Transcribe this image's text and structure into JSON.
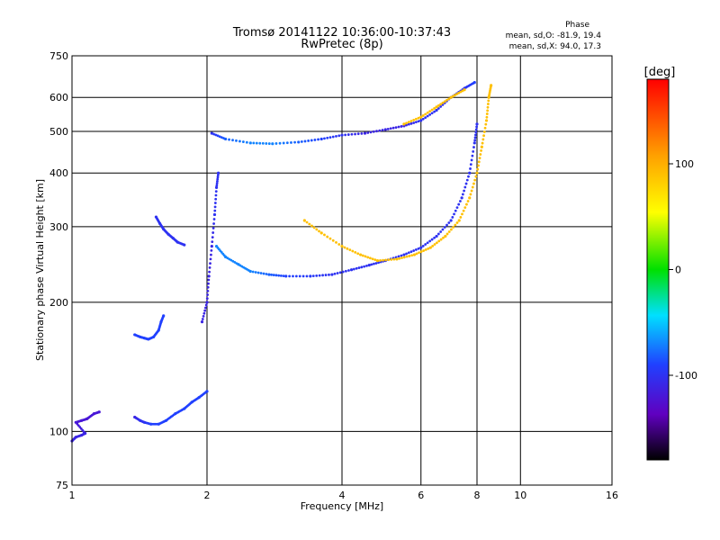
{
  "chart_data": {
    "type": "scatter",
    "title": "Tromsø 20141122 10:36:00-10:37:43",
    "subtitle": "RwPretec (8p)",
    "xlabel": "Frequency [MHz]",
    "ylabel": "Stationary phase Virtual Height [km]",
    "x_scale": "log",
    "y_scale": "log",
    "xlim": [
      1,
      16
    ],
    "ylim": [
      75,
      750
    ],
    "x_ticks": [
      1,
      2,
      4,
      6,
      8,
      10,
      16
    ],
    "y_ticks": [
      75,
      100,
      200,
      300,
      400,
      500,
      600,
      750
    ],
    "grid": true,
    "phase_stats": {
      "heading": "Phase",
      "line1": "mean, sd,O: -81.9, 19.4",
      "line2": "mean, sd,X:  94.0, 17.3"
    },
    "colorbar": {
      "label": "[deg]",
      "range": [
        -180,
        180
      ],
      "ticks": [
        100,
        0,
        -100
      ],
      "tick_labels": [
        "100",
        "0",
        "-100"
      ],
      "colormap": "rainbow"
    },
    "series": [
      {
        "points": [
          [
            1.0,
            95,
            -110
          ],
          [
            1.02,
            97,
            -110
          ],
          [
            1.05,
            98,
            -110
          ],
          [
            1.07,
            99,
            -110
          ],
          [
            1.02,
            105,
            -120
          ],
          [
            1.05,
            106,
            -120
          ],
          [
            1.08,
            107,
            -120
          ],
          [
            1.12,
            110,
            -120
          ],
          [
            1.15,
            111,
            -120
          ]
        ],
        "phase": -120
      },
      {
        "points": [
          [
            1.38,
            108,
            -110
          ],
          [
            1.42,
            106,
            -100
          ],
          [
            1.45,
            105,
            -100
          ],
          [
            1.5,
            104,
            -90
          ],
          [
            1.56,
            104,
            -90
          ],
          [
            1.62,
            106,
            -90
          ],
          [
            1.7,
            110,
            -90
          ],
          [
            1.78,
            113,
            -90
          ],
          [
            1.85,
            117,
            -90
          ],
          [
            1.92,
            120,
            -90
          ],
          [
            2.0,
            124,
            -90
          ]
        ],
        "phase": -90
      },
      {
        "points": [
          [
            1.38,
            168,
            -90
          ],
          [
            1.42,
            166,
            -90
          ],
          [
            1.45,
            165,
            -90
          ],
          [
            1.48,
            164,
            -90
          ],
          [
            1.52,
            166,
            -90
          ],
          [
            1.56,
            172,
            -90
          ],
          [
            1.58,
            180,
            -90
          ],
          [
            1.6,
            186,
            -90
          ]
        ],
        "phase": -90
      },
      {
        "points": [
          [
            1.54,
            316,
            -100
          ],
          [
            1.57,
            305,
            -100
          ],
          [
            1.6,
            296,
            -100
          ],
          [
            1.64,
            288,
            -100
          ],
          [
            1.68,
            282,
            -100
          ],
          [
            1.72,
            276,
            -100
          ],
          [
            1.78,
            272,
            -100
          ]
        ],
        "phase": -100
      },
      {
        "points": [
          [
            1.95,
            180,
            -110
          ],
          [
            2.0,
            200,
            -110
          ],
          [
            2.02,
            230,
            -110
          ],
          [
            2.05,
            270,
            -110
          ],
          [
            2.08,
            320,
            -100
          ],
          [
            2.1,
            370,
            -100
          ],
          [
            2.12,
            400,
            -100
          ]
        ],
        "phase": -110
      },
      {
        "points": [
          [
            2.1,
            270,
            -70
          ],
          [
            2.2,
            255,
            -70
          ],
          [
            2.35,
            245,
            -70
          ],
          [
            2.5,
            236,
            -70
          ],
          [
            2.75,
            232,
            -80
          ],
          [
            3.0,
            230,
            -90
          ],
          [
            3.4,
            230,
            -95
          ],
          [
            3.8,
            232,
            -100
          ],
          [
            4.2,
            238,
            -100
          ],
          [
            4.6,
            244,
            -100
          ],
          [
            5.0,
            250,
            -100
          ],
          [
            5.5,
            258,
            -100
          ],
          [
            6.0,
            268,
            -100
          ],
          [
            6.5,
            285,
            -100
          ],
          [
            7.0,
            310,
            -100
          ],
          [
            7.4,
            350,
            -100
          ],
          [
            7.7,
            400,
            -100
          ],
          [
            7.9,
            470,
            -100
          ],
          [
            8.0,
            520,
            -100
          ]
        ],
        "phase": -100
      },
      {
        "points": [
          [
            3.3,
            310,
            90
          ],
          [
            3.6,
            290,
            90
          ],
          [
            4.0,
            270,
            90
          ],
          [
            4.4,
            258,
            90
          ],
          [
            4.8,
            250,
            90
          ],
          [
            5.3,
            252,
            90
          ],
          [
            5.8,
            258,
            90
          ],
          [
            6.3,
            268,
            90
          ],
          [
            6.8,
            285,
            90
          ],
          [
            7.3,
            310,
            90
          ],
          [
            7.7,
            350,
            90
          ],
          [
            8.0,
            400,
            90
          ],
          [
            8.2,
            460,
            90
          ],
          [
            8.4,
            530,
            90
          ],
          [
            8.5,
            600,
            90
          ],
          [
            8.6,
            640,
            90
          ]
        ],
        "phase": 90
      },
      {
        "points": [
          [
            2.05,
            495,
            -100
          ],
          [
            2.2,
            480,
            -80
          ],
          [
            2.5,
            470,
            -70
          ],
          [
            2.8,
            468,
            -70
          ],
          [
            3.2,
            472,
            -80
          ],
          [
            3.6,
            480,
            -90
          ],
          [
            4.0,
            490,
            -100
          ],
          [
            4.5,
            495,
            -110
          ],
          [
            5.0,
            505,
            -110
          ],
          [
            5.5,
            515,
            -110
          ],
          [
            6.0,
            530,
            -100
          ],
          [
            6.5,
            560,
            -100
          ],
          [
            7.0,
            600,
            -100
          ],
          [
            7.5,
            630,
            -100
          ],
          [
            7.9,
            650,
            -90
          ]
        ],
        "phase": -100
      },
      {
        "points": [
          [
            5.5,
            520,
            90
          ],
          [
            6.0,
            540,
            90
          ],
          [
            6.5,
            570,
            90
          ],
          [
            7.0,
            600,
            90
          ],
          [
            7.5,
            625,
            90
          ]
        ],
        "phase": 90
      }
    ]
  }
}
